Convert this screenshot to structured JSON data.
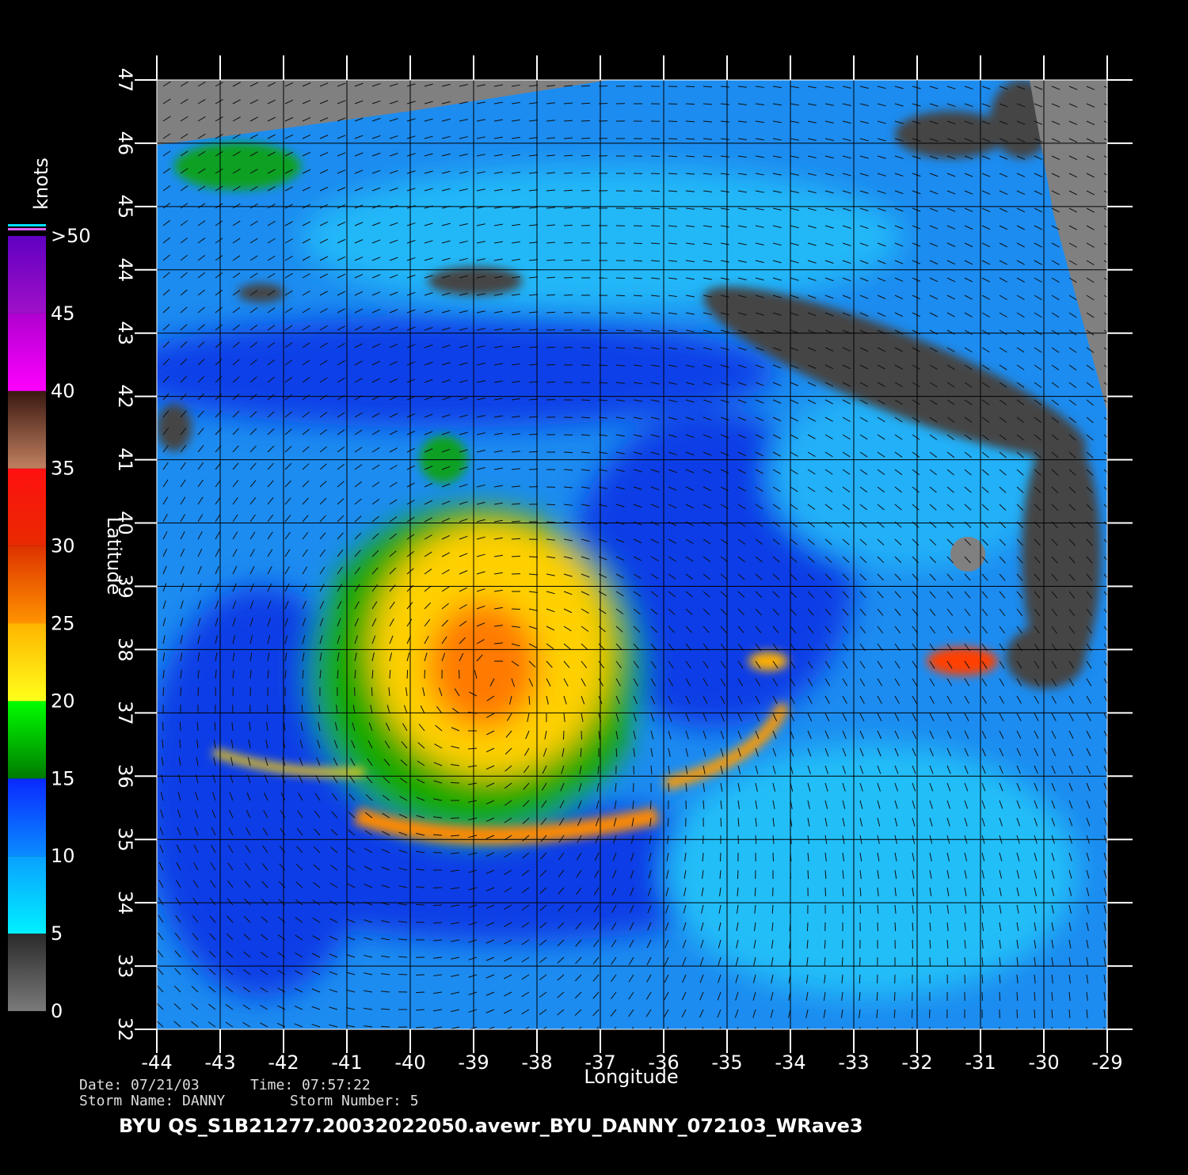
{
  "chart_data": {
    "type": "wind-map",
    "x_label": "Longitude",
    "y_label": "Latitude",
    "xlim": [
      -44,
      -29
    ],
    "ylim": [
      32,
      47
    ],
    "xticks": [
      -44,
      -43,
      -42,
      -41,
      -40,
      -39,
      -38,
      -37,
      -36,
      -35,
      -34,
      -33,
      -32,
      -31,
      -30,
      -29
    ],
    "yticks": [
      32,
      33,
      34,
      35,
      36,
      37,
      38,
      39,
      40,
      41,
      42,
      43,
      44,
      45,
      46,
      47
    ],
    "grid": true,
    "colorbar": {
      "label": "knots",
      "ticks": [
        0,
        5,
        10,
        15,
        20,
        25,
        30,
        35,
        40,
        45,
        {
          "value": 50,
          "label": ">50"
        }
      ],
      "colors": [
        [
          "#7a7a7a",
          "#2a2a2a"
        ],
        [
          "#00f0ff",
          "#0aa0ff"
        ],
        [
          "#0a8cff",
          "#0a28ff"
        ],
        [
          "#007a00",
          "#00ff00"
        ],
        [
          "#ffff1a",
          "#ffb400"
        ],
        [
          "#ff9400",
          "#dd3200"
        ],
        [
          "#e82a00",
          "#ff1010"
        ],
        [
          "#c08060",
          "#3a1810"
        ],
        [
          "#ff00ff",
          "#b000d0"
        ],
        [
          "#a010c8",
          "#6000c0"
        ]
      ]
    },
    "footer": {
      "date": "Date: 07/21/03",
      "time": "Time: 07:57:22",
      "storm_name": "Storm Name: DANNY",
      "storm_number": "Storm Number: 5",
      "file": "BYU QS_S1B21277.20032022050.avewr_BYU_DANNY_072103_WRave3"
    }
  }
}
